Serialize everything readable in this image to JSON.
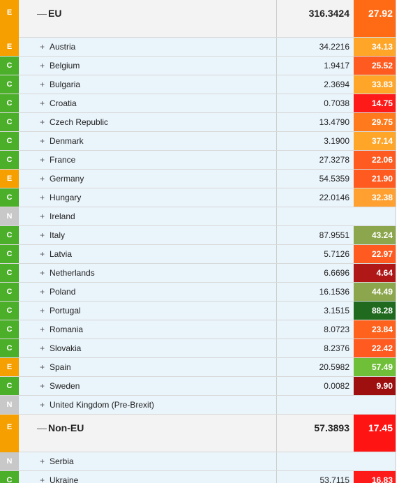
{
  "groups": [
    {
      "badge": "E",
      "name": "EU",
      "value": "316.3424",
      "score": "27.92",
      "score_color": "#ff6a14",
      "rows": [
        {
          "badge": "E",
          "name": "Austria",
          "value": "34.2216",
          "score": "34.13",
          "score_color": "#ffa528"
        },
        {
          "badge": "C",
          "name": "Belgium",
          "value": "1.9417",
          "score": "25.52",
          "score_color": "#ff5a1f"
        },
        {
          "badge": "C",
          "name": "Bulgaria",
          "value": "2.3694",
          "score": "33.83",
          "score_color": "#ffa528"
        },
        {
          "badge": "C",
          "name": "Croatia",
          "value": "0.7038",
          "score": "14.75",
          "score_color": "#ff1a1a"
        },
        {
          "badge": "C",
          "name": "Czech Republic",
          "value": "13.4790",
          "score": "29.75",
          "score_color": "#ff7a1c"
        },
        {
          "badge": "C",
          "name": "Denmark",
          "value": "3.1900",
          "score": "37.14",
          "score_color": "#ffa528"
        },
        {
          "badge": "C",
          "name": "France",
          "value": "27.3278",
          "score": "22.06",
          "score_color": "#ff5a1f"
        },
        {
          "badge": "E",
          "name": "Germany",
          "value": "54.5359",
          "score": "21.90",
          "score_color": "#ff5a1f"
        },
        {
          "badge": "C",
          "name": "Hungary",
          "value": "22.0146",
          "score": "32.38",
          "score_color": "#ffa030"
        },
        {
          "badge": "N",
          "name": "Ireland"
        },
        {
          "badge": "C",
          "name": "Italy",
          "value": "87.9551",
          "score": "43.24",
          "score_color": "#8ba64c"
        },
        {
          "badge": "C",
          "name": "Latvia",
          "value": "5.7126",
          "score": "22.97",
          "score_color": "#ff5a1f"
        },
        {
          "badge": "C",
          "name": "Netherlands",
          "value": "6.6696",
          "score": "4.64",
          "score_color": "#b01818"
        },
        {
          "badge": "C",
          "name": "Poland",
          "value": "16.1536",
          "score": "44.49",
          "score_color": "#8ba64c"
        },
        {
          "badge": "C",
          "name": "Portugal",
          "value": "3.1515",
          "score": "88.28",
          "score_color": "#1f6a1f"
        },
        {
          "badge": "C",
          "name": "Romania",
          "value": "8.0723",
          "score": "23.84",
          "score_color": "#ff621c"
        },
        {
          "badge": "C",
          "name": "Slovakia",
          "value": "8.2376",
          "score": "22.42",
          "score_color": "#ff5a1f"
        },
        {
          "badge": "E",
          "name": "Spain",
          "value": "20.5982",
          "score": "57.49",
          "score_color": "#6fbf38"
        },
        {
          "badge": "C",
          "name": "Sweden",
          "value": "0.0082",
          "score": "9.90",
          "score_color": "#9e1010"
        },
        {
          "badge": "N",
          "name": "United Kingdom (Pre-Brexit)"
        }
      ]
    },
    {
      "badge": "E",
      "name": "Non-EU",
      "value": "57.3893",
      "score": "17.45",
      "score_color": "#ff1414",
      "rows": [
        {
          "badge": "N",
          "name": "Serbia"
        },
        {
          "badge": "C",
          "name": "Ukraine",
          "value": "53.7115",
          "score": "16.83",
          "score_color": "#ff1a1a"
        }
      ]
    }
  ]
}
